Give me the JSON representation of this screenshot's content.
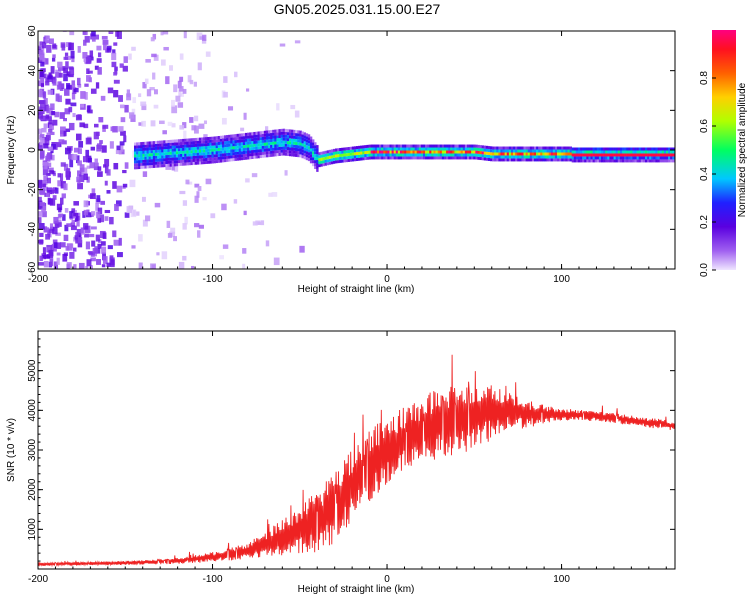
{
  "title": "GN05.2025.031.15.00.E27",
  "chart_data": [
    {
      "type": "heatmap",
      "xlabel": "Height of straight line (km)",
      "ylabel": "Frequency (Hz)",
      "xlim": [
        -200,
        165
      ],
      "ylim": [
        -60,
        60
      ],
      "xticks": [
        -200,
        -100,
        0,
        100
      ],
      "yticks": [
        -60,
        -40,
        -20,
        0,
        20,
        40,
        60
      ],
      "colorbar": {
        "label": "Normalized spectral amplitude",
        "range": [
          0,
          1
        ],
        "ticks": [
          0.0,
          0.2,
          0.4,
          0.6,
          0.8
        ],
        "colormap": [
          "#e6d8ff",
          "#8a2be2",
          "#3030ff",
          "#00e0ff",
          "#00ff60",
          "#c8ff00",
          "#ffb000",
          "#ff2020",
          "#ff1080"
        ]
      },
      "ridge": {
        "x": [
          -145,
          -130,
          -115,
          -100,
          -90,
          -80,
          -70,
          -60,
          -50,
          -45,
          -40,
          -35,
          -30,
          -20,
          -10,
          0,
          10,
          20,
          30,
          40,
          50,
          60,
          70,
          80,
          90,
          100,
          110,
          120,
          140,
          165
        ],
        "y": [
          -3,
          -2,
          -1,
          0,
          1,
          2,
          3,
          4,
          3,
          1,
          -5,
          -4,
          -3,
          -2,
          -1,
          -1,
          -1,
          -1,
          -1,
          -1,
          -1,
          -2,
          -2,
          -2,
          -2,
          -2,
          -2,
          -2,
          -2,
          -2
        ]
      },
      "noise_region_x": [
        -200,
        -105
      ],
      "grid": false
    },
    {
      "type": "line",
      "xlabel": "Height of straight line (km)",
      "ylabel": "SNR (10 * v/v)",
      "xlim": [
        -200,
        165
      ],
      "ylim": [
        0,
        6000
      ],
      "xticks": [
        -200,
        -100,
        0,
        100
      ],
      "yticks": [
        1000,
        2000,
        3000,
        4000,
        5000
      ],
      "color": "#ee2222",
      "envelope": {
        "x": [
          -200,
          -150,
          -120,
          -100,
          -80,
          -60,
          -50,
          -40,
          -30,
          -20,
          -10,
          0,
          10,
          20,
          30,
          40,
          50,
          60,
          70,
          80,
          90,
          100,
          120,
          140,
          165
        ],
        "mean": [
          120,
          150,
          200,
          300,
          450,
          800,
          1000,
          1200,
          1600,
          2100,
          2600,
          3000,
          3300,
          3500,
          3700,
          3800,
          3900,
          4000,
          4000,
          3900,
          3900,
          3900,
          3850,
          3750,
          3600
        ],
        "spread": [
          80,
          100,
          150,
          250,
          400,
          900,
          1200,
          1600,
          1900,
          1900,
          1800,
          1700,
          1600,
          1700,
          1800,
          1800,
          1800,
          1500,
          1000,
          700,
          500,
          300,
          250,
          250,
          250
        ]
      },
      "grid": false
    }
  ]
}
